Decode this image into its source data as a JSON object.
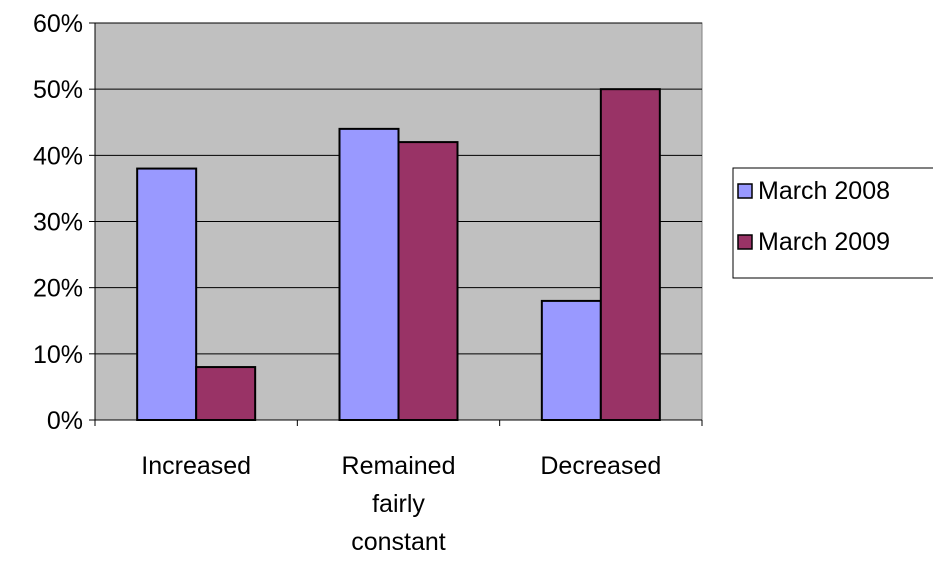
{
  "chart_data": {
    "type": "bar",
    "title": "",
    "xlabel": "",
    "ylabel": "",
    "categories": [
      [
        "Increased"
      ],
      [
        "Remained",
        "fairly",
        "constant"
      ],
      [
        "Decreased"
      ]
    ],
    "series": [
      {
        "name": "March 2008",
        "color": "#9999ff",
        "values": [
          38,
          44,
          18
        ]
      },
      {
        "name": "March 2009",
        "color": "#993366",
        "values": [
          8,
          42,
          50
        ]
      }
    ],
    "ylim": [
      0,
      60
    ],
    "ytick_values": [
      0,
      10,
      20,
      30,
      40,
      50,
      60
    ],
    "ytick_labels": [
      "0%",
      "10%",
      "20%",
      "30%",
      "40%",
      "50%",
      "60%"
    ],
    "grid": true,
    "plot_background": "#c0c0c0",
    "legend_position": "right"
  }
}
